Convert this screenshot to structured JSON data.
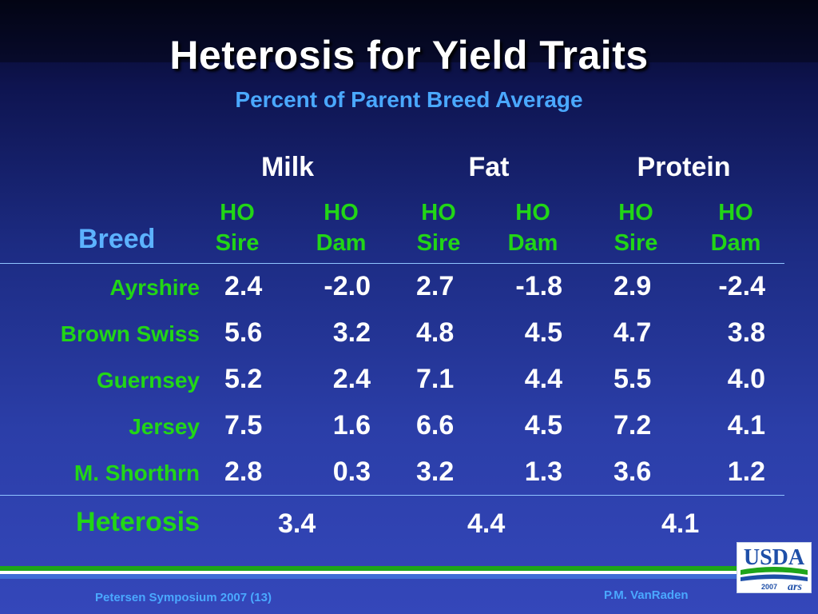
{
  "slide": {
    "title": "Heterosis for Yield Traits",
    "subtitle": "Percent of Parent Breed Average"
  },
  "table": {
    "groups": [
      "Milk",
      "Fat",
      "Protein"
    ],
    "sub_line1": "HO",
    "sub_sire": "Sire",
    "sub_dam": "Dam",
    "breed_header": "Breed",
    "rows": [
      {
        "breed": "Ayrshire",
        "values": [
          "2.4",
          "-2.0",
          "2.7",
          "-1.8",
          "2.9",
          "-2.4"
        ]
      },
      {
        "breed": "Brown Swiss",
        "values": [
          "5.6",
          "3.2",
          "4.8",
          "4.5",
          "4.7",
          "3.8"
        ]
      },
      {
        "breed": "Guernsey",
        "values": [
          "5.2",
          "2.4",
          "7.1",
          "4.4",
          "5.5",
          "4.0"
        ]
      },
      {
        "breed": "Jersey",
        "values": [
          "7.5",
          "1.6",
          "6.6",
          "4.5",
          "7.2",
          "4.1"
        ]
      },
      {
        "breed": "M. Shorthrn",
        "values": [
          "2.8",
          "0.3",
          "3.2",
          "1.3",
          "3.6",
          "1.2"
        ]
      }
    ],
    "heterosis_label": "Heterosis",
    "heterosis_values": [
      "3.4",
      "4.4",
      "4.1"
    ]
  },
  "footer": {
    "left": "Petersen Symposium 2007 (13)",
    "right": "P.M. VanRaden",
    "logo_text": "USDA",
    "logo_year": "2007",
    "logo_mark": "ars"
  },
  "colors": {
    "title": "#ffffff",
    "subtitle": "#4aa8ff",
    "green_labels": "#22d616",
    "breed_header": "#5cb2ff",
    "usda_blue": "#1e4fa8",
    "usda_green": "#1ea51a"
  }
}
